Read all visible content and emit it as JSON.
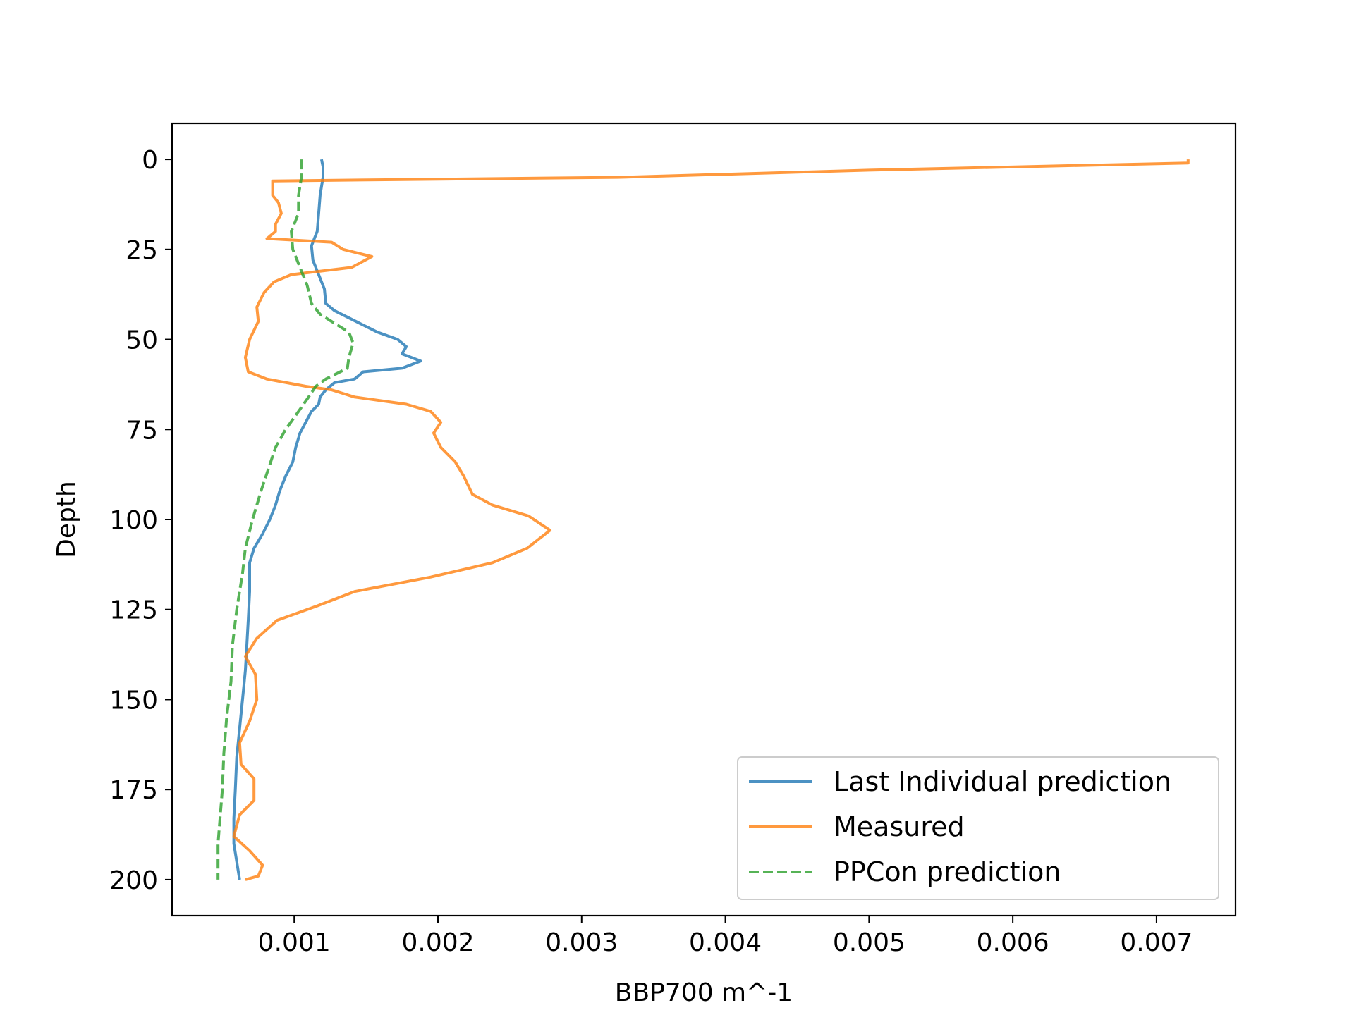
{
  "chart_data": {
    "type": "line",
    "title": "",
    "xlabel": "BBP700 m^-1",
    "ylabel": "Depth",
    "xlim": [
      0.00015,
      0.00755
    ],
    "ylim": [
      210,
      -10
    ],
    "y_inverted": true,
    "grid": false,
    "legend_position": "lower right",
    "xticks": [
      0.001,
      0.002,
      0.003,
      0.004,
      0.005,
      0.006,
      0.007
    ],
    "xtick_labels": [
      "0.001",
      "0.002",
      "0.003",
      "0.004",
      "0.005",
      "0.006",
      "0.007"
    ],
    "yticks": [
      0,
      25,
      50,
      75,
      100,
      125,
      150,
      175,
      200
    ],
    "ytick_labels": [
      "0",
      "25",
      "50",
      "75",
      "100",
      "125",
      "150",
      "175",
      "200"
    ],
    "series": [
      {
        "name": "Last Individual prediction",
        "color": "#1f77b4",
        "style": "solid",
        "points": [
          [
            0.00119,
            0
          ],
          [
            0.0012,
            2
          ],
          [
            0.0012,
            5
          ],
          [
            0.00118,
            10
          ],
          [
            0.00117,
            15
          ],
          [
            0.00116,
            20
          ],
          [
            0.00112,
            24
          ],
          [
            0.00113,
            28
          ],
          [
            0.00117,
            32
          ],
          [
            0.00121,
            36
          ],
          [
            0.00122,
            40
          ],
          [
            0.00128,
            42
          ],
          [
            0.00138,
            44
          ],
          [
            0.00148,
            46
          ],
          [
            0.00158,
            48
          ],
          [
            0.00172,
            50
          ],
          [
            0.00178,
            52
          ],
          [
            0.00175,
            54
          ],
          [
            0.00188,
            56
          ],
          [
            0.00175,
            58
          ],
          [
            0.00148,
            59
          ],
          [
            0.00142,
            61
          ],
          [
            0.00128,
            62
          ],
          [
            0.00122,
            64
          ],
          [
            0.00118,
            66
          ],
          [
            0.00117,
            68
          ],
          [
            0.00112,
            70
          ],
          [
            0.00108,
            73
          ],
          [
            0.00104,
            76
          ],
          [
            0.00101,
            80
          ],
          [
            0.00099,
            84
          ],
          [
            0.00094,
            88
          ],
          [
            0.0009,
            92
          ],
          [
            0.00087,
            96
          ],
          [
            0.00083,
            100
          ],
          [
            0.00078,
            104
          ],
          [
            0.00072,
            108
          ],
          [
            0.00069,
            112
          ],
          [
            0.00069,
            120
          ],
          [
            0.00068,
            128
          ],
          [
            0.00067,
            135
          ],
          [
            0.00066,
            142
          ],
          [
            0.00064,
            150
          ],
          [
            0.00062,
            158
          ],
          [
            0.0006,
            166
          ],
          [
            0.00059,
            175
          ],
          [
            0.00058,
            183
          ],
          [
            0.00058,
            190
          ],
          [
            0.0006,
            195
          ],
          [
            0.00062,
            200
          ]
        ]
      },
      {
        "name": "Measured",
        "color": "#ff7f0e",
        "style": "solid",
        "points": [
          [
            0.00722,
            0
          ],
          [
            0.00722,
            1
          ],
          [
            0.005,
            3
          ],
          [
            0.00325,
            5
          ],
          [
            0.00085,
            6
          ],
          [
            0.00085,
            10
          ],
          [
            0.00089,
            12
          ],
          [
            0.00091,
            15
          ],
          [
            0.00087,
            18
          ],
          [
            0.00087,
            20
          ],
          [
            0.00081,
            22
          ],
          [
            0.00126,
            23
          ],
          [
            0.00134,
            25
          ],
          [
            0.00154,
            27
          ],
          [
            0.0014,
            30
          ],
          [
            0.00098,
            32
          ],
          [
            0.00086,
            34
          ],
          [
            0.00079,
            37
          ],
          [
            0.00074,
            41
          ],
          [
            0.00075,
            45
          ],
          [
            0.00069,
            50
          ],
          [
            0.00066,
            55
          ],
          [
            0.00068,
            59
          ],
          [
            0.00081,
            61
          ],
          [
            0.00108,
            63
          ],
          [
            0.00126,
            64
          ],
          [
            0.00142,
            66
          ],
          [
            0.00178,
            68
          ],
          [
            0.00195,
            70
          ],
          [
            0.00202,
            73
          ],
          [
            0.00197,
            76
          ],
          [
            0.00202,
            80
          ],
          [
            0.00212,
            84
          ],
          [
            0.00218,
            88
          ],
          [
            0.00224,
            93
          ],
          [
            0.00238,
            96
          ],
          [
            0.00263,
            99
          ],
          [
            0.00278,
            103
          ],
          [
            0.00262,
            108
          ],
          [
            0.00238,
            112
          ],
          [
            0.00195,
            116
          ],
          [
            0.00142,
            120
          ],
          [
            0.00116,
            124
          ],
          [
            0.00088,
            128
          ],
          [
            0.00074,
            133
          ],
          [
            0.00066,
            138
          ],
          [
            0.00073,
            143
          ],
          [
            0.00074,
            150
          ],
          [
            0.00069,
            156
          ],
          [
            0.00062,
            162
          ],
          [
            0.00063,
            168
          ],
          [
            0.00072,
            172
          ],
          [
            0.00072,
            178
          ],
          [
            0.00062,
            182
          ],
          [
            0.00058,
            188
          ],
          [
            0.00069,
            192
          ],
          [
            0.00078,
            196
          ],
          [
            0.00075,
            199
          ],
          [
            0.00066,
            200
          ]
        ]
      },
      {
        "name": "PPCon prediction",
        "color": "#2ca02c",
        "style": "dashed",
        "points": [
          [
            0.00105,
            0
          ],
          [
            0.00105,
            5
          ],
          [
            0.00103,
            10
          ],
          [
            0.00103,
            15
          ],
          [
            0.00098,
            20
          ],
          [
            0.00099,
            25
          ],
          [
            0.00104,
            30
          ],
          [
            0.00109,
            35
          ],
          [
            0.00112,
            40
          ],
          [
            0.00118,
            43
          ],
          [
            0.00126,
            45
          ],
          [
            0.00138,
            48
          ],
          [
            0.00141,
            51
          ],
          [
            0.00138,
            55
          ],
          [
            0.00137,
            58
          ],
          [
            0.00122,
            61
          ],
          [
            0.00115,
            63
          ],
          [
            0.0011,
            66
          ],
          [
            0.00103,
            70
          ],
          [
            0.00094,
            75
          ],
          [
            0.00087,
            80
          ],
          [
            0.00082,
            86
          ],
          [
            0.00077,
            92
          ],
          [
            0.00071,
            100
          ],
          [
            0.00066,
            108
          ],
          [
            0.00064,
            115
          ],
          [
            0.0006,
            125
          ],
          [
            0.00057,
            135
          ],
          [
            0.00056,
            145
          ],
          [
            0.00053,
            155
          ],
          [
            0.00051,
            165
          ],
          [
            0.0005,
            175
          ],
          [
            0.00048,
            185
          ],
          [
            0.00047,
            190
          ],
          [
            0.00047,
            200
          ]
        ]
      }
    ]
  }
}
